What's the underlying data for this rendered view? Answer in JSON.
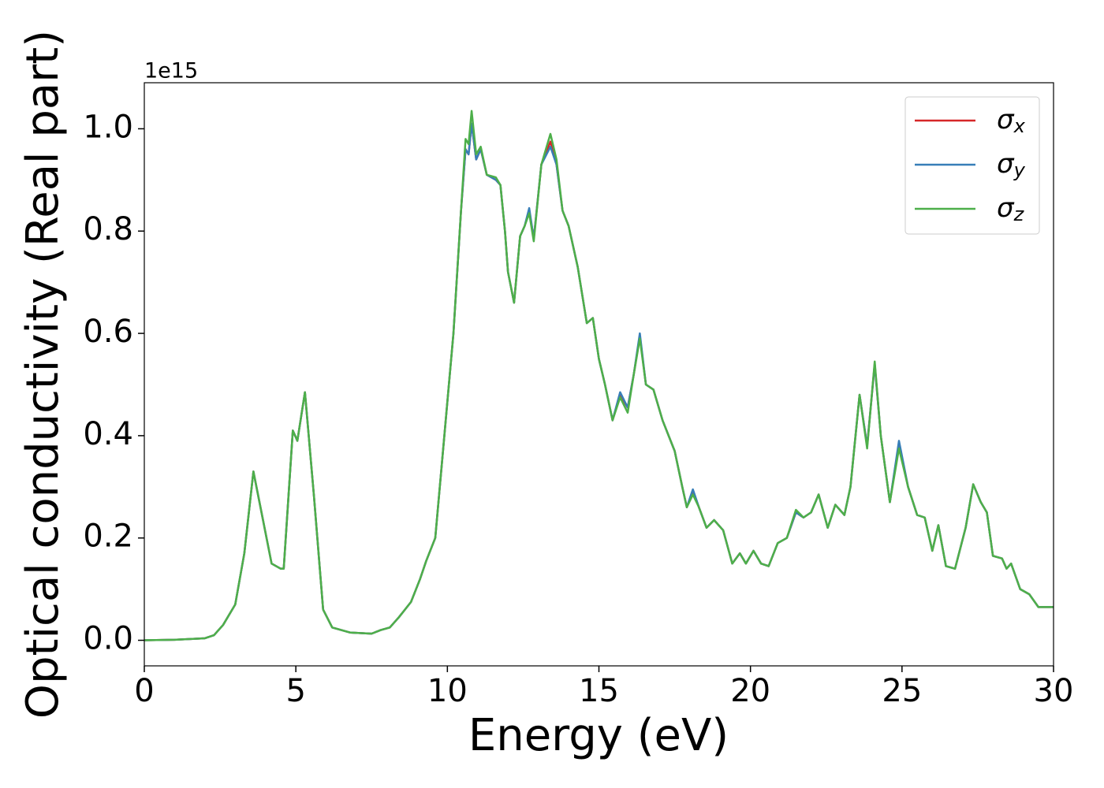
{
  "chart_data": {
    "type": "line",
    "xlabel": "Energy (eV)",
    "ylabel": "Optical conductivity (Real part)",
    "offset_text": "1e15",
    "x": [
      0,
      1,
      2,
      2.3,
      2.6,
      3.0,
      3.3,
      3.6,
      3.9,
      4.2,
      4.5,
      4.6,
      4.9,
      5.05,
      5.3,
      5.6,
      5.9,
      6.2,
      6.8,
      7.5,
      7.8,
      8.1,
      8.4,
      8.8,
      9.1,
      9.3,
      9.6,
      9.9,
      10.2,
      10.45,
      10.6,
      10.7,
      10.8,
      10.95,
      11.1,
      11.3,
      11.6,
      11.75,
      11.9,
      12.0,
      12.2,
      12.4,
      12.55,
      12.7,
      12.85,
      13.1,
      13.4,
      13.6,
      13.8,
      14.0,
      14.3,
      14.6,
      14.8,
      15.0,
      15.2,
      15.45,
      15.7,
      15.95,
      16.15,
      16.35,
      16.55,
      16.8,
      17.1,
      17.5,
      17.75,
      17.9,
      18.1,
      18.3,
      18.55,
      18.8,
      19.1,
      19.4,
      19.65,
      19.85,
      20.1,
      20.35,
      20.6,
      20.9,
      21.2,
      21.5,
      21.75,
      22.0,
      22.25,
      22.55,
      22.8,
      23.1,
      23.3,
      23.6,
      23.85,
      24.1,
      24.3,
      24.6,
      24.9,
      25.2,
      25.5,
      25.75,
      26.0,
      26.2,
      26.45,
      26.75,
      27.1,
      27.35,
      27.6,
      27.8,
      28.0,
      28.3,
      28.45,
      28.6,
      28.9,
      29.2,
      29.5,
      29.8,
      30
    ],
    "series": [
      {
        "name": "σx",
        "color": "#d62728",
        "values": [
          0,
          0.001,
          0.004,
          0.01,
          0.03,
          0.07,
          0.17,
          0.33,
          0.24,
          0.15,
          0.14,
          0.14,
          0.41,
          0.39,
          0.485,
          0.28,
          0.06,
          0.025,
          0.015,
          0.013,
          0.02,
          0.025,
          0.045,
          0.075,
          0.12,
          0.155,
          0.2,
          0.4,
          0.6,
          0.84,
          0.96,
          0.95,
          1.01,
          0.94,
          0.96,
          0.91,
          0.9,
          0.89,
          0.8,
          0.72,
          0.66,
          0.79,
          0.81,
          0.84,
          0.785,
          0.93,
          0.975,
          0.93,
          0.84,
          0.81,
          0.73,
          0.62,
          0.63,
          0.55,
          0.5,
          0.43,
          0.48,
          0.455,
          0.52,
          0.595,
          0.5,
          0.49,
          0.43,
          0.37,
          0.3,
          0.26,
          0.29,
          0.26,
          0.22,
          0.235,
          0.215,
          0.15,
          0.17,
          0.15,
          0.175,
          0.15,
          0.145,
          0.19,
          0.2,
          0.25,
          0.24,
          0.25,
          0.285,
          0.22,
          0.265,
          0.245,
          0.3,
          0.48,
          0.38,
          0.54,
          0.4,
          0.27,
          0.385,
          0.3,
          0.245,
          0.24,
          0.175,
          0.225,
          0.145,
          0.14,
          0.22,
          0.305,
          0.27,
          0.25,
          0.165,
          0.16,
          0.14,
          0.15,
          0.1,
          0.09,
          0.065,
          0.065,
          0.065
        ]
      },
      {
        "name": "σy",
        "color": "#377eb8",
        "values": [
          0,
          0.001,
          0.004,
          0.01,
          0.03,
          0.07,
          0.17,
          0.33,
          0.24,
          0.15,
          0.14,
          0.14,
          0.41,
          0.39,
          0.485,
          0.28,
          0.06,
          0.025,
          0.015,
          0.013,
          0.02,
          0.025,
          0.045,
          0.075,
          0.12,
          0.155,
          0.2,
          0.4,
          0.6,
          0.84,
          0.96,
          0.95,
          1.01,
          0.94,
          0.96,
          0.91,
          0.9,
          0.89,
          0.8,
          0.72,
          0.66,
          0.79,
          0.81,
          0.845,
          0.785,
          0.93,
          0.965,
          0.93,
          0.84,
          0.81,
          0.73,
          0.62,
          0.63,
          0.55,
          0.5,
          0.43,
          0.485,
          0.455,
          0.52,
          0.6,
          0.5,
          0.49,
          0.43,
          0.37,
          0.3,
          0.26,
          0.295,
          0.26,
          0.22,
          0.235,
          0.215,
          0.15,
          0.17,
          0.15,
          0.175,
          0.15,
          0.145,
          0.19,
          0.2,
          0.25,
          0.24,
          0.25,
          0.285,
          0.22,
          0.265,
          0.245,
          0.3,
          0.48,
          0.38,
          0.54,
          0.4,
          0.27,
          0.39,
          0.3,
          0.245,
          0.24,
          0.175,
          0.225,
          0.145,
          0.14,
          0.22,
          0.305,
          0.27,
          0.25,
          0.165,
          0.16,
          0.14,
          0.15,
          0.1,
          0.09,
          0.065,
          0.065,
          0.065
        ]
      },
      {
        "name": "σz",
        "color": "#4daf4a",
        "values": [
          0,
          0.001,
          0.004,
          0.01,
          0.03,
          0.07,
          0.17,
          0.33,
          0.24,
          0.15,
          0.14,
          0.14,
          0.41,
          0.39,
          0.485,
          0.28,
          0.06,
          0.025,
          0.015,
          0.013,
          0.02,
          0.025,
          0.045,
          0.075,
          0.12,
          0.155,
          0.2,
          0.4,
          0.6,
          0.84,
          0.98,
          0.97,
          1.035,
          0.95,
          0.965,
          0.91,
          0.905,
          0.89,
          0.8,
          0.72,
          0.66,
          0.79,
          0.81,
          0.835,
          0.78,
          0.93,
          0.99,
          0.94,
          0.84,
          0.81,
          0.73,
          0.62,
          0.63,
          0.55,
          0.5,
          0.43,
          0.475,
          0.445,
          0.52,
          0.59,
          0.5,
          0.49,
          0.43,
          0.37,
          0.3,
          0.26,
          0.285,
          0.26,
          0.22,
          0.235,
          0.215,
          0.15,
          0.17,
          0.15,
          0.175,
          0.15,
          0.145,
          0.19,
          0.2,
          0.255,
          0.24,
          0.25,
          0.285,
          0.22,
          0.265,
          0.245,
          0.3,
          0.48,
          0.375,
          0.545,
          0.4,
          0.27,
          0.375,
          0.3,
          0.245,
          0.24,
          0.175,
          0.225,
          0.145,
          0.14,
          0.22,
          0.305,
          0.27,
          0.25,
          0.165,
          0.16,
          0.14,
          0.15,
          0.1,
          0.09,
          0.065,
          0.065,
          0.065
        ]
      }
    ],
    "xlim": [
      0,
      30
    ],
    "xticks": [
      0,
      5,
      10,
      15,
      20,
      25,
      30
    ],
    "ylim": [
      -0.05,
      1.09
    ],
    "yticks": [
      {
        "value": 0,
        "label": "0.0"
      },
      0.2,
      0.4,
      0.6,
      0.8,
      {
        "value": 1,
        "label": "1.0"
      }
    ],
    "grid": false,
    "legend": "upper right"
  }
}
